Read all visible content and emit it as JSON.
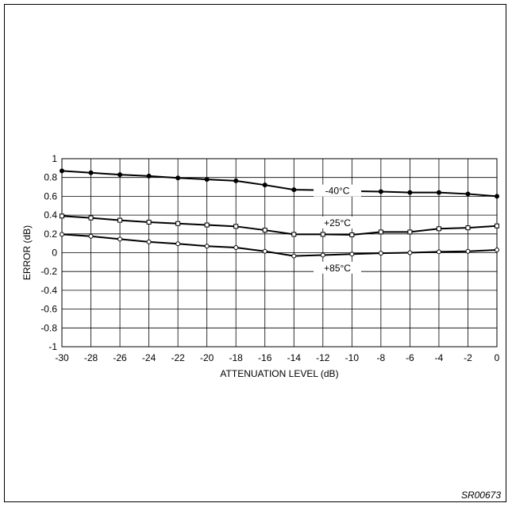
{
  "chart_data": {
    "type": "line",
    "xlabel": "ATTENUATION LEVEL (dB)",
    "ylabel": "ERROR (dB)",
    "xlim": [
      -30,
      0
    ],
    "ylim": [
      -1,
      1
    ],
    "x_ticks": [
      -30,
      -28,
      -26,
      -24,
      -22,
      -20,
      -18,
      -16,
      -14,
      -12,
      -10,
      -8,
      -6,
      -4,
      -2,
      0
    ],
    "y_ticks": [
      1,
      0.8,
      0.6,
      0.4,
      0.2,
      0,
      -0.2,
      -0.4,
      -0.6,
      -0.8,
      -1
    ],
    "grid": true,
    "x": [
      -30,
      -28,
      -26,
      -24,
      -22,
      -20,
      -18,
      -16,
      -14,
      -12,
      -10,
      -8,
      -6,
      -4,
      -2,
      0
    ],
    "series": [
      {
        "name": "-40°C",
        "marker": "filled-circle",
        "values": [
          0.87,
          0.85,
          0.83,
          0.815,
          0.795,
          0.78,
          0.765,
          0.72,
          0.67,
          0.665,
          0.655,
          0.65,
          0.64,
          0.64,
          0.625,
          0.6
        ]
      },
      {
        "name": "+25°C",
        "marker": "square",
        "values": [
          0.39,
          0.37,
          0.345,
          0.325,
          0.31,
          0.295,
          0.28,
          0.24,
          0.195,
          0.195,
          0.19,
          0.22,
          0.22,
          0.255,
          0.265,
          0.285
        ]
      },
      {
        "name": "+85°C",
        "marker": "open-circle",
        "values": [
          0.195,
          0.175,
          0.145,
          0.115,
          0.095,
          0.07,
          0.055,
          0.015,
          -0.035,
          -0.025,
          -0.015,
          -0.005,
          0.0,
          0.01,
          0.015,
          0.03
        ]
      }
    ]
  },
  "figure_code": "SR00673"
}
